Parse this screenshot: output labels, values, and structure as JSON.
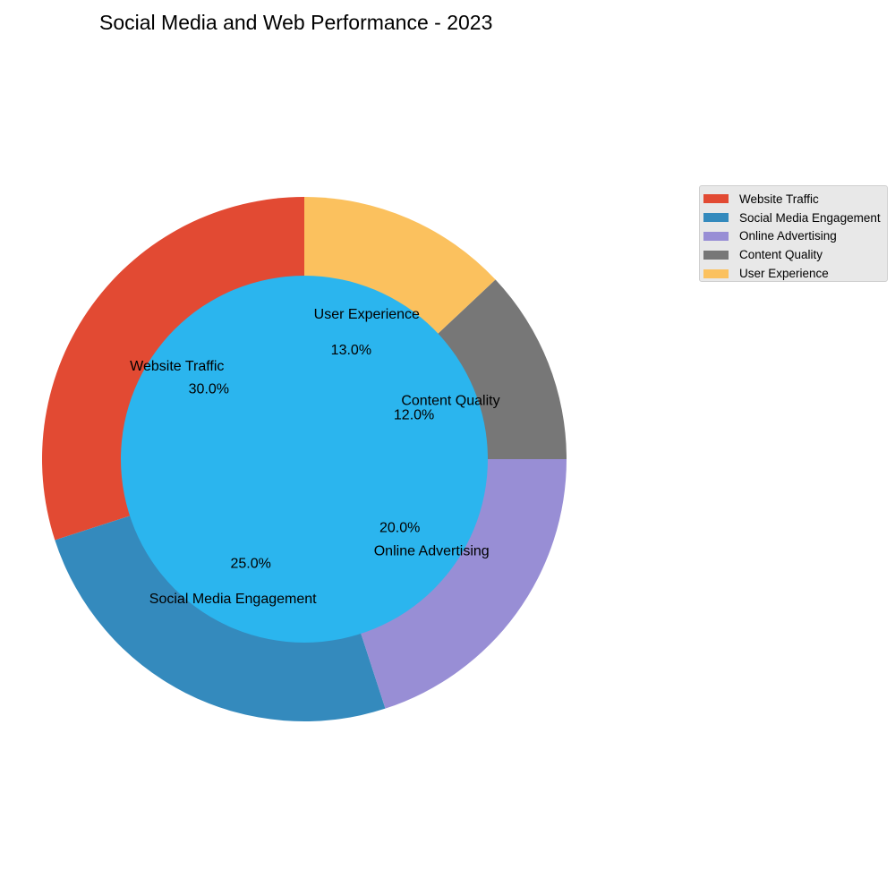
{
  "chart_data": {
    "type": "pie",
    "style": "donut",
    "title": "Social Media and Web Performance - 2023",
    "categories": [
      "Website Traffic",
      "Social Media Engagement",
      "Online Advertising",
      "Content Quality",
      "User Experience"
    ],
    "values": [
      30,
      25,
      20,
      12,
      13
    ],
    "percent_labels": [
      "30.0%",
      "25.0%",
      "20.0%",
      "12.0%",
      "13.0%"
    ],
    "colors": [
      "#E24A33",
      "#348ABD",
      "#988ED5",
      "#777777",
      "#FBC15E"
    ],
    "center_color": "#2BB5EE",
    "start_angle_deg": 90,
    "direction": "counterclockwise",
    "legend": {
      "placement": "right",
      "entries": [
        "Website Traffic",
        "Social Media Engagement",
        "Online Advertising",
        "Content Quality",
        "User Experience"
      ]
    }
  }
}
